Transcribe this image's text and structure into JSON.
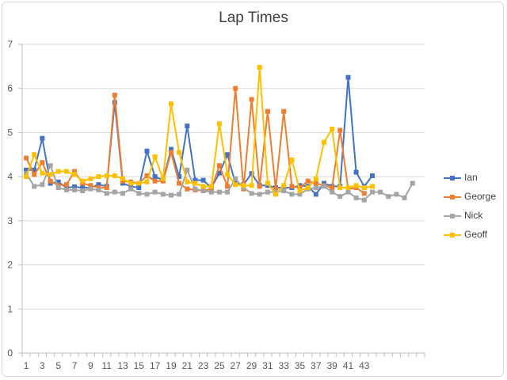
{
  "chart_data": {
    "type": "line",
    "title": "Lap Times",
    "xlabel": "",
    "ylabel": "",
    "ylim": [
      0,
      7
    ],
    "y_ticks": [
      0,
      1,
      2,
      3,
      4,
      5,
      6,
      7
    ],
    "x_tick_labels": [
      "1",
      "3",
      "5",
      "7",
      "9",
      "11",
      "13",
      "15",
      "17",
      "19",
      "21",
      "23",
      "25",
      "27",
      "29",
      "31",
      "33",
      "35",
      "37",
      "39",
      "41",
      "43"
    ],
    "x": [
      1,
      2,
      3,
      4,
      5,
      6,
      7,
      8,
      9,
      10,
      11,
      12,
      13,
      14,
      15,
      16,
      17,
      18,
      19,
      20,
      21,
      22,
      23,
      24,
      25,
      26,
      27,
      28,
      29,
      30,
      31,
      32,
      33,
      34,
      35,
      36,
      37,
      38,
      39,
      40,
      41,
      42,
      43,
      44,
      45,
      46,
      47,
      48,
      49,
      50
    ],
    "grid": "horizontal",
    "legend_position": "right",
    "series": [
      {
        "name": "Ian",
        "color": "#4472c4",
        "values": [
          4.15,
          4.15,
          4.87,
          3.85,
          3.88,
          3.75,
          3.77,
          3.75,
          3.75,
          3.82,
          3.78,
          5.68,
          3.85,
          3.78,
          3.75,
          4.58,
          4.0,
          3.92,
          4.62,
          4.0,
          5.15,
          3.92,
          3.92,
          3.75,
          4.08,
          4.5,
          3.85,
          3.82,
          4.07,
          3.8,
          3.8,
          3.75,
          3.75,
          3.75,
          3.8,
          3.78,
          3.6,
          3.85,
          3.78,
          3.78,
          6.25,
          4.1,
          3.78,
          4.02,
          null,
          null,
          null,
          null,
          null,
          null
        ]
      },
      {
        "name": "George",
        "color": "#ed7d31",
        "values": [
          4.42,
          4.05,
          4.32,
          3.9,
          3.8,
          3.82,
          4.12,
          3.85,
          3.8,
          3.75,
          3.75,
          5.85,
          3.9,
          3.88,
          3.85,
          4.02,
          3.9,
          3.9,
          4.55,
          3.85,
          3.72,
          3.7,
          3.68,
          3.72,
          4.25,
          3.78,
          6.0,
          3.72,
          5.75,
          3.78,
          5.48,
          3.72,
          5.48,
          3.78,
          3.75,
          3.9,
          3.85,
          3.8,
          3.75,
          5.05,
          3.72,
          3.75,
          3.62,
          null,
          null,
          null,
          null,
          null,
          null,
          null
        ]
      },
      {
        "name": "Nick",
        "color": "#a5a5a5",
        "values": [
          4.07,
          3.78,
          3.82,
          4.25,
          3.75,
          3.7,
          3.7,
          3.68,
          3.72,
          3.7,
          3.62,
          3.65,
          3.62,
          3.72,
          3.62,
          3.6,
          3.65,
          3.6,
          3.58,
          3.6,
          4.15,
          3.72,
          3.68,
          3.65,
          3.65,
          3.65,
          3.95,
          3.75,
          3.62,
          3.6,
          3.65,
          3.65,
          3.68,
          3.6,
          3.6,
          3.72,
          3.75,
          3.78,
          3.65,
          3.55,
          3.65,
          3.52,
          3.47,
          3.65,
          3.65,
          3.55,
          3.6,
          3.52,
          3.85,
          null
        ]
      },
      {
        "name": "Geoff",
        "color": "#ffc000",
        "values": [
          4.0,
          4.5,
          4.08,
          4.05,
          4.12,
          4.12,
          4.05,
          3.9,
          3.95,
          4.0,
          4.02,
          4.02,
          3.95,
          3.85,
          3.85,
          3.88,
          4.45,
          3.95,
          5.65,
          4.55,
          3.88,
          3.85,
          3.78,
          3.78,
          5.2,
          4.05,
          3.82,
          3.8,
          3.8,
          6.48,
          3.85,
          3.6,
          3.8,
          4.38,
          3.68,
          3.75,
          3.95,
          4.78,
          5.08,
          3.75,
          3.75,
          3.8,
          3.75,
          3.78,
          null,
          null,
          null,
          null,
          null,
          null
        ]
      }
    ]
  }
}
